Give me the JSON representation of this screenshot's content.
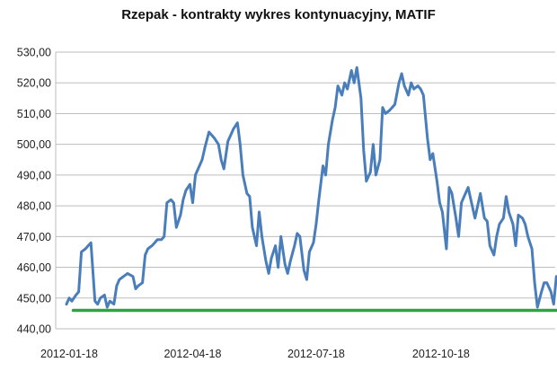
{
  "chart_data": {
    "type": "line",
    "title": "Rzepak - kontrakty wykres kontynuacyjny, MATIF",
    "xlabel": "",
    "ylabel": "",
    "ylim": [
      440,
      530
    ],
    "grid": "horizontal",
    "y_ticks": [
      "440,00",
      "450,00",
      "460,00",
      "470,00",
      "480,00",
      "490,00",
      "500,00",
      "510,00",
      "520,00",
      "530,00"
    ],
    "x_ticks": [
      "2012-01-18",
      "2012-04-18",
      "2012-07-18",
      "2012-10-18"
    ],
    "x_range": [
      "2012-01-18",
      "2013-01-30"
    ],
    "series": [
      {
        "color": "#4a7ebb",
        "points": [
          [
            "2012-01-16",
            448
          ],
          [
            "2012-01-18",
            450
          ],
          [
            "2012-01-20",
            449
          ],
          [
            "2012-01-23",
            451
          ],
          [
            "2012-01-25",
            452
          ],
          [
            "2012-01-27",
            465
          ],
          [
            "2012-01-30",
            466
          ],
          [
            "2012-02-01",
            467
          ],
          [
            "2012-02-03",
            468
          ],
          [
            "2012-02-06",
            449
          ],
          [
            "2012-02-08",
            448
          ],
          [
            "2012-02-10",
            450
          ],
          [
            "2012-02-13",
            451
          ],
          [
            "2012-02-15",
            447
          ],
          [
            "2012-02-17",
            449
          ],
          [
            "2012-02-20",
            448
          ],
          [
            "2012-02-22",
            454
          ],
          [
            "2012-02-24",
            456
          ],
          [
            "2012-02-27",
            457
          ],
          [
            "2012-03-01",
            458
          ],
          [
            "2012-03-05",
            457
          ],
          [
            "2012-03-07",
            453
          ],
          [
            "2012-03-09",
            454
          ],
          [
            "2012-03-12",
            455
          ],
          [
            "2012-03-14",
            464
          ],
          [
            "2012-03-16",
            466
          ],
          [
            "2012-03-19",
            467
          ],
          [
            "2012-03-21",
            468
          ],
          [
            "2012-03-23",
            469
          ],
          [
            "2012-03-26",
            469
          ],
          [
            "2012-03-28",
            470
          ],
          [
            "2012-03-30",
            481
          ],
          [
            "2012-04-02",
            482
          ],
          [
            "2012-04-04",
            481
          ],
          [
            "2012-04-06",
            473
          ],
          [
            "2012-04-09",
            477
          ],
          [
            "2012-04-11",
            482
          ],
          [
            "2012-04-13",
            485
          ],
          [
            "2012-04-16",
            487
          ],
          [
            "2012-04-18",
            481
          ],
          [
            "2012-04-20",
            490
          ],
          [
            "2012-04-23",
            493
          ],
          [
            "2012-04-25",
            495
          ],
          [
            "2012-04-27",
            499
          ],
          [
            "2012-04-30",
            504
          ],
          [
            "2012-05-02",
            503
          ],
          [
            "2012-05-04",
            502
          ],
          [
            "2012-05-07",
            500
          ],
          [
            "2012-05-09",
            495
          ],
          [
            "2012-05-11",
            492
          ],
          [
            "2012-05-14",
            501
          ],
          [
            "2012-05-16",
            503
          ],
          [
            "2012-05-18",
            505
          ],
          [
            "2012-05-21",
            507
          ],
          [
            "2012-05-23",
            500
          ],
          [
            "2012-05-25",
            490
          ],
          [
            "2012-05-28",
            484
          ],
          [
            "2012-05-30",
            483
          ],
          [
            "2012-06-01",
            473
          ],
          [
            "2012-06-04",
            467
          ],
          [
            "2012-06-06",
            478
          ],
          [
            "2012-06-08",
            470
          ],
          [
            "2012-06-11",
            462
          ],
          [
            "2012-06-13",
            458
          ],
          [
            "2012-06-15",
            463
          ],
          [
            "2012-06-18",
            467
          ],
          [
            "2012-06-20",
            460
          ],
          [
            "2012-06-22",
            470
          ],
          [
            "2012-06-25",
            461
          ],
          [
            "2012-06-27",
            458
          ],
          [
            "2012-06-29",
            462
          ],
          [
            "2012-07-02",
            467
          ],
          [
            "2012-07-04",
            471
          ],
          [
            "2012-07-06",
            470
          ],
          [
            "2012-07-09",
            459
          ],
          [
            "2012-07-11",
            456
          ],
          [
            "2012-07-13",
            465
          ],
          [
            "2012-07-16",
            468
          ],
          [
            "2012-07-18",
            474
          ],
          [
            "2012-07-20",
            482
          ],
          [
            "2012-07-23",
            493
          ],
          [
            "2012-07-25",
            490
          ],
          [
            "2012-07-27",
            500
          ],
          [
            "2012-07-30",
            508
          ],
          [
            "2012-08-01",
            512
          ],
          [
            "2012-08-03",
            519
          ],
          [
            "2012-08-06",
            516
          ],
          [
            "2012-08-08",
            520
          ],
          [
            "2012-08-10",
            518
          ],
          [
            "2012-08-13",
            524
          ],
          [
            "2012-08-15",
            520
          ],
          [
            "2012-08-17",
            525
          ],
          [
            "2012-08-20",
            515
          ],
          [
            "2012-08-22",
            498
          ],
          [
            "2012-08-24",
            488
          ],
          [
            "2012-08-27",
            491
          ],
          [
            "2012-08-29",
            500
          ],
          [
            "2012-08-31",
            490
          ],
          [
            "2012-09-03",
            495
          ],
          [
            "2012-09-05",
            512
          ],
          [
            "2012-09-07",
            510
          ],
          [
            "2012-09-10",
            511
          ],
          [
            "2012-09-12",
            512
          ],
          [
            "2012-09-14",
            513
          ],
          [
            "2012-09-17",
            520
          ],
          [
            "2012-09-19",
            523
          ],
          [
            "2012-09-21",
            519
          ],
          [
            "2012-09-24",
            516
          ],
          [
            "2012-09-26",
            520
          ],
          [
            "2012-09-28",
            518
          ],
          [
            "2012-10-01",
            519
          ],
          [
            "2012-10-03",
            518
          ],
          [
            "2012-10-05",
            516
          ],
          [
            "2012-10-08",
            502
          ],
          [
            "2012-10-10",
            495
          ],
          [
            "2012-10-12",
            497
          ],
          [
            "2012-10-15",
            488
          ],
          [
            "2012-10-17",
            481
          ],
          [
            "2012-10-19",
            478
          ],
          [
            "2012-10-22",
            466
          ],
          [
            "2012-10-24",
            486
          ],
          [
            "2012-10-26",
            484
          ],
          [
            "2012-10-29",
            476
          ],
          [
            "2012-10-31",
            470
          ],
          [
            "2012-11-02",
            481
          ],
          [
            "2012-11-05",
            484
          ],
          [
            "2012-11-07",
            486
          ],
          [
            "2012-11-09",
            482
          ],
          [
            "2012-11-12",
            476
          ],
          [
            "2012-11-14",
            480
          ],
          [
            "2012-11-16",
            484
          ],
          [
            "2012-11-19",
            476
          ],
          [
            "2012-11-21",
            475
          ],
          [
            "2012-11-23",
            467
          ],
          [
            "2012-11-26",
            464
          ],
          [
            "2012-11-28",
            470
          ],
          [
            "2012-11-30",
            474
          ],
          [
            "2012-12-03",
            476
          ],
          [
            "2012-12-05",
            483
          ],
          [
            "2012-12-07",
            478
          ],
          [
            "2012-12-10",
            474
          ],
          [
            "2012-12-12",
            467
          ],
          [
            "2012-12-14",
            477
          ],
          [
            "2012-12-17",
            476
          ],
          [
            "2012-12-19",
            474
          ],
          [
            "2012-12-21",
            470
          ],
          [
            "2012-12-24",
            466
          ],
          [
            "2012-12-26",
            455
          ],
          [
            "2012-12-28",
            447
          ],
          [
            "2012-12-31",
            452
          ],
          [
            "2013-01-02",
            455
          ],
          [
            "2013-01-04",
            455
          ],
          [
            "2013-01-07",
            452
          ],
          [
            "2013-01-09",
            448
          ],
          [
            "2013-01-11",
            457
          ]
        ]
      },
      {
        "color": "#2aa744",
        "points": [
          [
            "2012-01-21",
            446
          ],
          [
            "2013-01-14",
            446
          ]
        ]
      }
    ]
  }
}
